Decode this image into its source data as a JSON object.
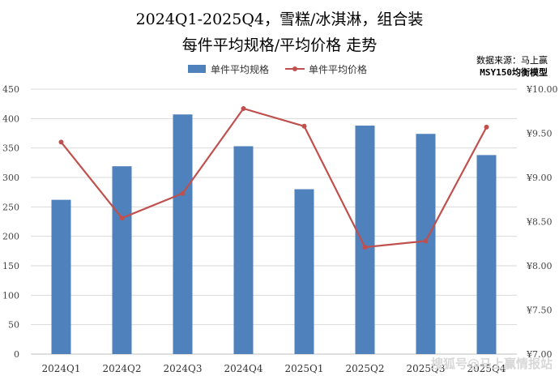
{
  "chart_data": {
    "type": "bar",
    "title": "2024Q1-2025Q4，雪糕/冰淇淋，组合装",
    "subtitle": "每件平均规格/平均价格 走势",
    "source_line1": "数据来源：马上赢",
    "source_line2": "MSY150均衡模型",
    "categories": [
      "2024Q1",
      "2024Q2",
      "2024Q3",
      "2024Q4",
      "2025Q1",
      "2025Q2",
      "2025Q3",
      "2025Q4"
    ],
    "series": [
      {
        "name": "单件平均规格",
        "kind": "bar",
        "axis": "left",
        "color": "#4F81BD",
        "values": [
          262,
          319,
          407,
          353,
          280,
          388,
          374,
          338
        ]
      },
      {
        "name": "单件平均价格",
        "kind": "line",
        "axis": "right",
        "color": "#C0504D",
        "values": [
          9.4,
          8.54,
          8.82,
          9.78,
          9.58,
          8.21,
          8.28,
          9.57
        ]
      }
    ],
    "y_left": {
      "min": 0,
      "max": 450,
      "ticks": [
        "0",
        "50",
        "100",
        "150",
        "200",
        "250",
        "300",
        "350",
        "400",
        "450"
      ]
    },
    "y_right": {
      "min": 7.0,
      "max": 10.0,
      "ticks": [
        "¥7.00",
        "¥7.50",
        "¥8.00",
        "¥8.50",
        "¥9.00",
        "¥9.50",
        "¥10.00"
      ]
    },
    "grid": true,
    "legend_position": "top-center"
  },
  "watermark": "搜狐号@马上赢情报站"
}
